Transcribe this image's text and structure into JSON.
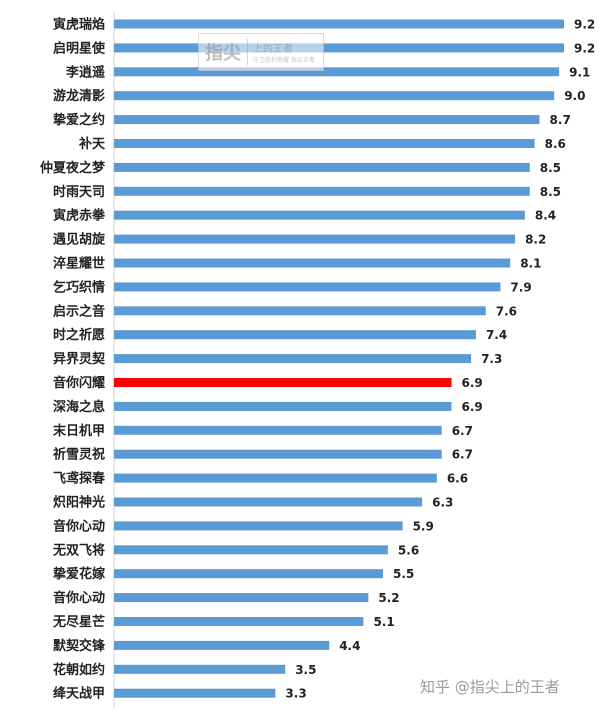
{
  "chart_data": {
    "type": "bar",
    "orientation": "horizontal",
    "categories": [
      "寅虎瑞焰",
      "启明星使",
      "李逍遥",
      "游龙清影",
      "挚爱之约",
      "补天",
      "仲夏夜之梦",
      "时雨天司",
      "寅虎赤拳",
      "遇见胡旋",
      "淬星耀世",
      "乞巧织情",
      "启示之音",
      "时之祈愿",
      "异界灵契",
      "音你闪耀",
      "深海之息",
      "末日机甲",
      "祈雪灵祝",
      "飞鸢探春",
      "炽阳神光",
      "音你心动",
      "无双飞将",
      "挚爱花嫁",
      "音你心动",
      "无尽星芒",
      "默契交锋",
      "花朝如约",
      "绛天战甲"
    ],
    "values": [
      9.2,
      9.2,
      9.1,
      9.0,
      8.7,
      8.6,
      8.5,
      8.5,
      8.4,
      8.2,
      8.1,
      7.9,
      7.6,
      7.4,
      7.3,
      6.9,
      6.9,
      6.7,
      6.7,
      6.6,
      6.3,
      5.9,
      5.6,
      5.5,
      5.2,
      5.1,
      4.4,
      3.5,
      3.3
    ],
    "value_labels": [
      "9.2",
      "9.2",
      "9.1",
      "9.0",
      "8.7",
      "8.6",
      "8.5",
      "8.5",
      "8.4",
      "8.2",
      "8.1",
      "7.9",
      "7.6",
      "7.4",
      "7.3",
      "6.9",
      "6.9",
      "6.7",
      "6.7",
      "6.6",
      "6.3",
      "5.9",
      "5.6",
      "5.5",
      "5.2",
      "5.1",
      "4.4",
      "3.5",
      "3.3"
    ],
    "highlight_index": 15,
    "xlim": [
      0,
      9.2
    ],
    "grid": false,
    "colors": {
      "bar": "#5b9bd5",
      "highlight": "#ff0000"
    }
  },
  "watermark": {
    "logo_text": "指尖",
    "top_text": "上的王者",
    "sub_text": "守卫胜利荣耀 指尖王者"
  },
  "footer": {
    "credit": "知乎 @指尖上的王者"
  }
}
